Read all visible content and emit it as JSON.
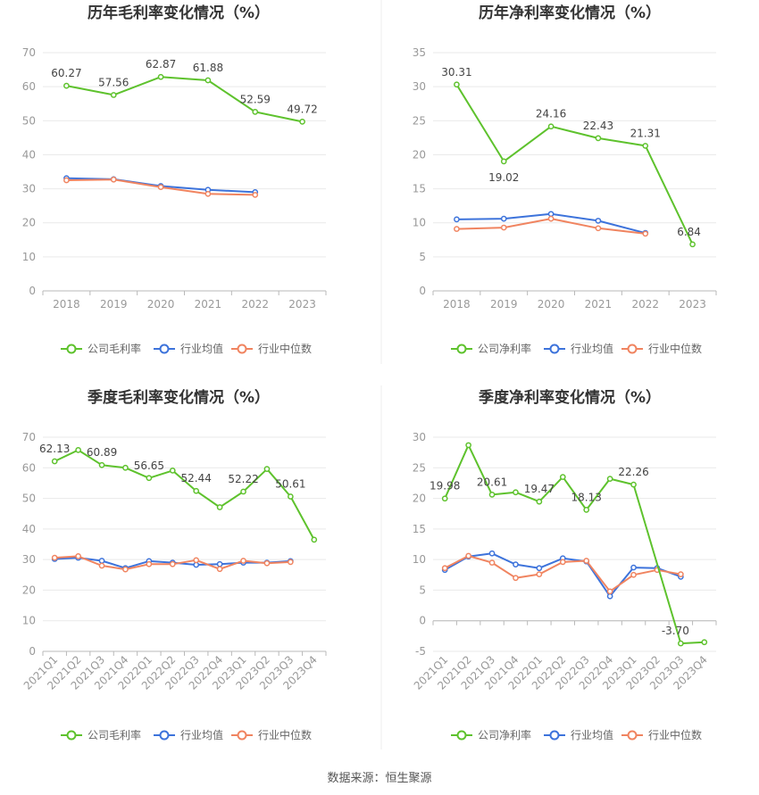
{
  "colors": {
    "company": "#5ec22d",
    "industry_avg": "#3d73db",
    "industry_median": "#f08460",
    "grid": "#e9e9e9",
    "axis": "#b9b9b9",
    "divider": "#eeeeee"
  },
  "source_text": "数据来源：恒生聚源",
  "chart_data": [
    {
      "type": "line",
      "title": "历年毛利率变化情况（%）",
      "categories": [
        "2018",
        "2019",
        "2020",
        "2021",
        "2022",
        "2023"
      ],
      "ylim": [
        0,
        70
      ],
      "yticks": [
        0,
        10,
        20,
        30,
        40,
        50,
        60,
        70
      ],
      "grid": true,
      "legend_placement": "bottom",
      "series": [
        {
          "name": "公司毛利率",
          "role": "company",
          "values": [
            60.27,
            57.56,
            62.87,
            61.88,
            52.59,
            49.72
          ],
          "labels": [
            "60.27",
            "57.56",
            "62.87",
            "61.88",
            "52.59",
            "49.72"
          ]
        },
        {
          "name": "行业均值",
          "role": "industry_avg",
          "values": [
            33.1,
            32.8,
            30.8,
            29.7,
            29.0,
            null
          ]
        },
        {
          "name": "行业中位数",
          "role": "industry_median",
          "values": [
            32.5,
            32.7,
            30.5,
            28.5,
            28.2,
            null
          ]
        }
      ]
    },
    {
      "type": "line",
      "title": "历年净利率变化情况（%）",
      "categories": [
        "2018",
        "2019",
        "2020",
        "2021",
        "2022",
        "2023"
      ],
      "ylim": [
        0,
        35
      ],
      "yticks": [
        0,
        5,
        10,
        15,
        20,
        25,
        30,
        35
      ],
      "grid": true,
      "legend_placement": "bottom",
      "series": [
        {
          "name": "公司净利率",
          "role": "company",
          "values": [
            30.31,
            19.02,
            24.16,
            22.43,
            21.31,
            6.84
          ],
          "labels": [
            "30.31",
            "19.02",
            "24.16",
            "22.43",
            "21.31",
            "6.84"
          ]
        },
        {
          "name": "行业均值",
          "role": "industry_avg",
          "values": [
            10.5,
            10.6,
            11.3,
            10.3,
            8.5,
            null
          ]
        },
        {
          "name": "行业中位数",
          "role": "industry_median",
          "values": [
            9.1,
            9.3,
            10.6,
            9.2,
            8.4,
            null
          ]
        }
      ]
    },
    {
      "type": "line",
      "title": "季度毛利率变化情况（%）",
      "categories": [
        "2021Q1",
        "2021Q2",
        "2021Q3",
        "2021Q4",
        "2022Q1",
        "2022Q2",
        "2022Q3",
        "2022Q4",
        "2023Q1",
        "2023Q2",
        "2023Q3",
        "2023Q4"
      ],
      "ylim": [
        0,
        70
      ],
      "yticks": [
        0,
        10,
        20,
        30,
        40,
        50,
        60,
        70
      ],
      "grid": true,
      "legend_placement": "bottom",
      "series": [
        {
          "name": "公司毛利率",
          "role": "company",
          "values": [
            62.13,
            65.8,
            60.89,
            60.0,
            56.65,
            59.1,
            52.44,
            47.1,
            52.22,
            59.6,
            50.61,
            36.5
          ],
          "labels": [
            "62.13",
            "",
            "60.89",
            "",
            "56.65",
            "",
            "52.44",
            "",
            "52.22",
            "",
            "50.61",
            ""
          ]
        },
        {
          "name": "行业均值",
          "role": "industry_avg",
          "values": [
            30.2,
            30.6,
            29.6,
            27.2,
            29.5,
            29.0,
            28.3,
            28.5,
            29.0,
            29.0,
            29.5,
            null
          ]
        },
        {
          "name": "行业中位数",
          "role": "industry_median",
          "values": [
            30.6,
            31.1,
            28.0,
            26.8,
            28.5,
            28.5,
            29.8,
            26.9,
            29.6,
            28.8,
            29.2,
            null
          ]
        }
      ]
    },
    {
      "type": "line",
      "title": "季度净利率变化情况（%）",
      "categories": [
        "2021Q1",
        "2021Q2",
        "2021Q3",
        "2021Q4",
        "2022Q1",
        "2022Q2",
        "2022Q3",
        "2022Q4",
        "2023Q1",
        "2023Q2",
        "2023Q3",
        "2023Q4"
      ],
      "ylim": [
        -5,
        30
      ],
      "yticks": [
        -5,
        0,
        5,
        10,
        15,
        20,
        25,
        30
      ],
      "grid": true,
      "legend_placement": "bottom",
      "series": [
        {
          "name": "公司净利率",
          "role": "company",
          "values": [
            19.98,
            28.7,
            20.61,
            21.0,
            19.47,
            23.5,
            18.13,
            23.2,
            22.26,
            null,
            -3.7,
            -3.5
          ],
          "labels": [
            "19.98",
            "",
            "20.61",
            "",
            "19.47",
            "",
            "18.13",
            "",
            "22.26",
            "",
            "-3.70",
            ""
          ]
        },
        {
          "name": "行业均值",
          "role": "industry_avg",
          "values": [
            8.3,
            10.5,
            11.0,
            9.2,
            8.6,
            10.2,
            9.7,
            4.0,
            8.7,
            8.6,
            7.2,
            null
          ]
        },
        {
          "name": "行业中位数",
          "role": "industry_median",
          "values": [
            8.6,
            10.6,
            9.5,
            7.0,
            7.6,
            9.6,
            9.8,
            4.8,
            7.5,
            8.3,
            7.6,
            null
          ]
        }
      ]
    }
  ]
}
